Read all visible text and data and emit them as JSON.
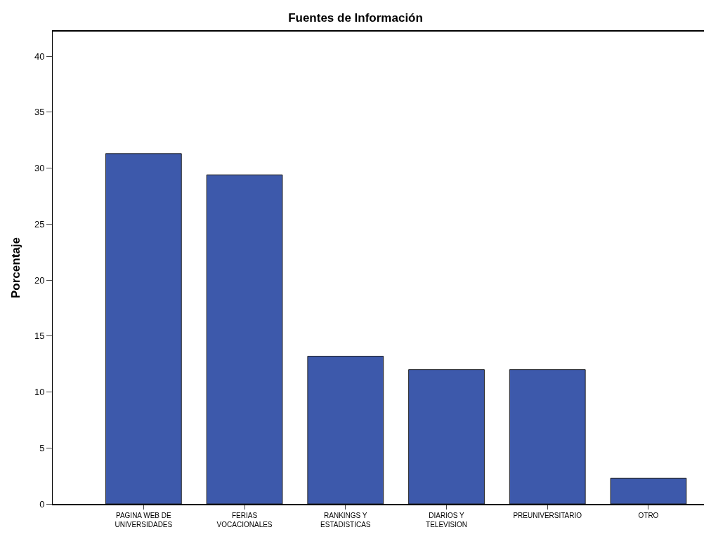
{
  "chart_data": {
    "type": "bar",
    "title": "Fuentes de Información",
    "ylabel": "Porcentaje",
    "categories": [
      "PAGINA WEB DE\nUNIVERSIDADES",
      "FERIAS\nVOCACIONALES",
      "RANKINGS Y\nESTADISTICAS",
      "DIARIOS Y\nTELEVISION",
      "PREUNIVERSITARIO",
      "OTRO"
    ],
    "values": [
      31.3,
      29.4,
      13.2,
      12.0,
      12.0,
      2.3
    ],
    "color": "#3d59ab",
    "ylim": [
      0,
      42.2
    ],
    "yticks": [
      0,
      5,
      10,
      15,
      20,
      25,
      30,
      35,
      40
    ]
  }
}
